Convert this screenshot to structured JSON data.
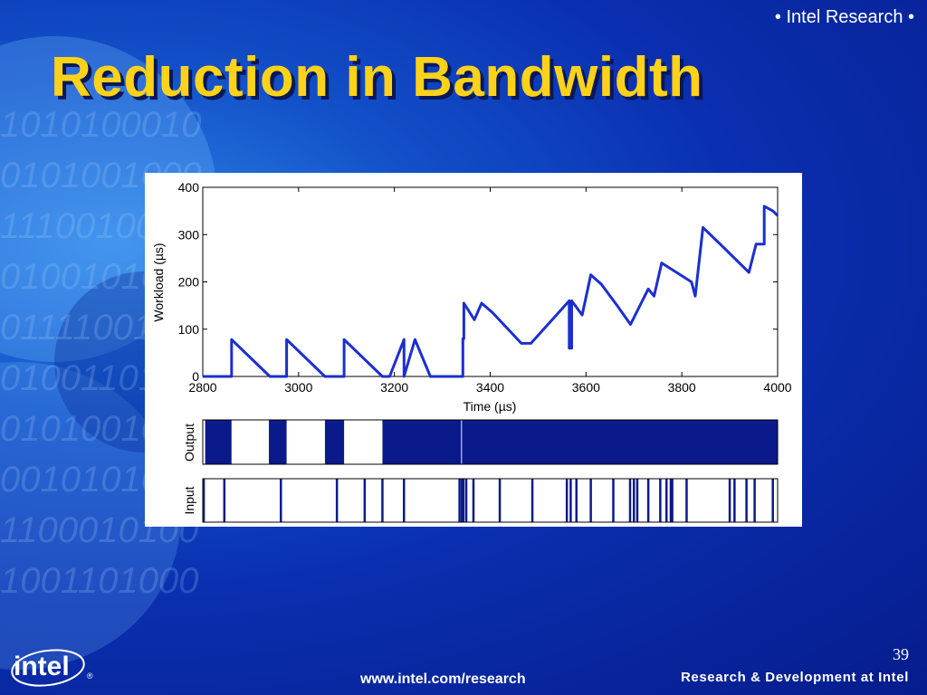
{
  "slide": {
    "header": "• Intel Research •",
    "title": "Reduction in Bandwidth",
    "page_number": "39",
    "footer_url": "www.intel.com/research",
    "footer_tagline": "Research & Development at Intel",
    "logo_text": "intel",
    "logo_mark": "®",
    "background_binary": "1010100010\n0101001000\n1110010010\n0100101010\n0111100110\n0100110100\n0101001011\n0010101011\n1100010100\n1001101000\n0100100110"
  },
  "colors": {
    "title": "#ffd21a",
    "background_dark": "#061c8c",
    "background_light": "#2f86e8",
    "plot_line": "#1b2fcf",
    "activity": "#0a1a8a"
  },
  "chart_data": {
    "type": "line",
    "xlabel": "Time (µs)",
    "ylabel": "Workload (µs)",
    "xlim": [
      2800,
      4000
    ],
    "ylim": [
      0,
      400
    ],
    "xticks": [
      "2800",
      "3000",
      "3200",
      "3400",
      "3600",
      "3800",
      "4000"
    ],
    "yticks": [
      "0",
      "100",
      "200",
      "300",
      "400"
    ],
    "grid": false,
    "series": [
      {
        "x": [
          2800,
          2860,
          2860,
          2940,
          2975,
          2975,
          3055,
          3095,
          3095,
          3175,
          3175,
          3190,
          3220,
          3220,
          3243,
          3275,
          3275,
          3343,
          3343,
          3345,
          3345,
          3367,
          3382,
          3382,
          3405,
          3465,
          3465,
          3485,
          3565,
          3565,
          3570,
          3570,
          3592,
          3610,
          3610,
          3632,
          3665,
          3665,
          3693,
          3730,
          3730,
          3742,
          3758,
          3758,
          3820,
          3820,
          3828,
          3844,
          3844,
          3880,
          3940,
          3940,
          3955,
          3972,
          3972,
          3990,
          4000
        ],
        "y": [
          0,
          0,
          78,
          0,
          0,
          78,
          0,
          0,
          78,
          0,
          0,
          0,
          78,
          0,
          78,
          0,
          0,
          0,
          80,
          80,
          155,
          120,
          155,
          155,
          135,
          70,
          70,
          70,
          160,
          60,
          60,
          160,
          130,
          215,
          215,
          195,
          150,
          150,
          110,
          185,
          185,
          170,
          240,
          240,
          200,
          200,
          170,
          315,
          315,
          280,
          220,
          220,
          280,
          280,
          360,
          350,
          340
        ]
      }
    ]
  },
  "output_panel": {
    "label": "Output",
    "busy_intervals": [
      [
        2805,
        2860
      ],
      [
        2938,
        2975
      ],
      [
        3055,
        3095
      ],
      [
        3175,
        4000
      ]
    ],
    "thin_marks": [
      3340
    ]
  },
  "input_panel": {
    "label": "Input",
    "event_times": [
      2802,
      2845,
      2963,
      3080,
      3138,
      3175,
      3220,
      3336,
      3341,
      3344,
      3350,
      3365,
      3420,
      3488,
      3560,
      3568,
      3580,
      3610,
      3657,
      3692,
      3700,
      3707,
      3730,
      3755,
      3768,
      3777,
      3780,
      3810,
      3900,
      3910,
      3935,
      3952,
      3990
    ]
  }
}
